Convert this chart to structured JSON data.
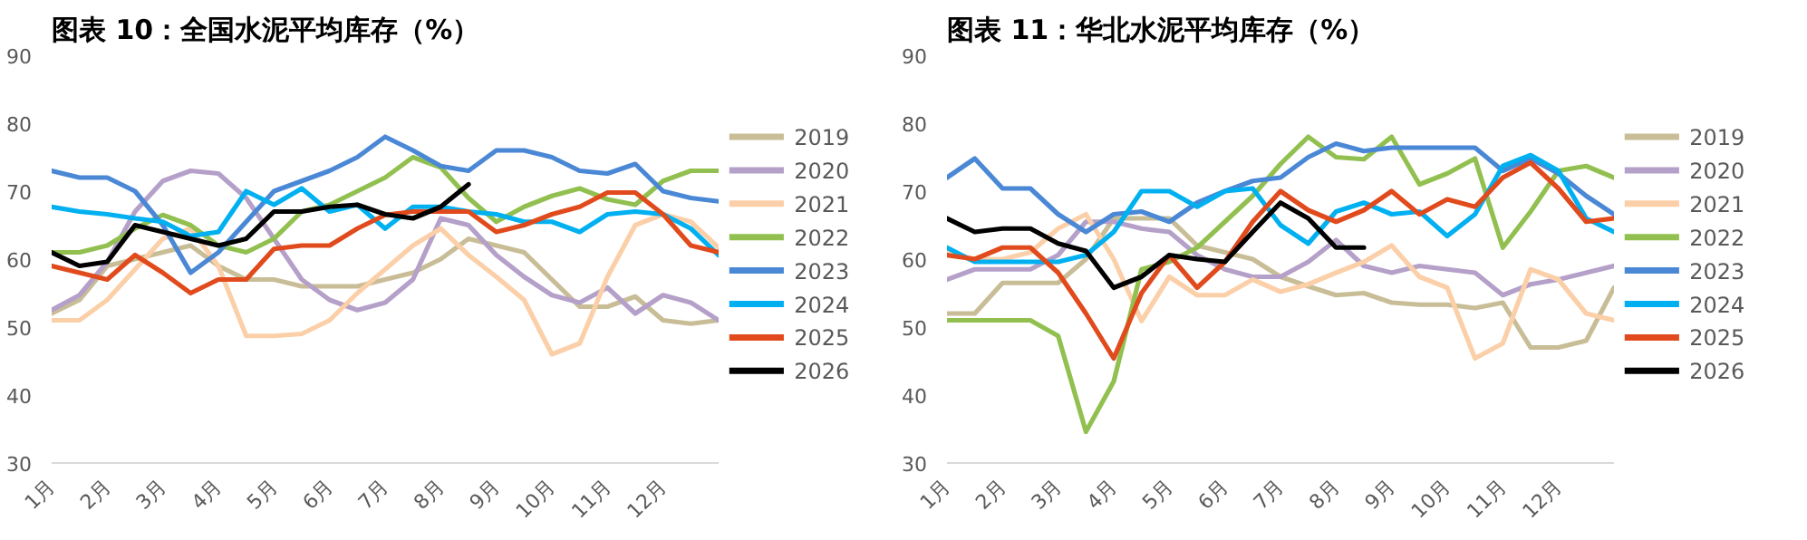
{
  "chart_data": [
    {
      "type": "line",
      "title": "图表 10：全国水泥平均库存（%）",
      "legend": "right",
      "ylim": [
        30,
        90
      ],
      "yticks": [
        30,
        40,
        50,
        60,
        70,
        80,
        90
      ],
      "categories": [
        "1月",
        null,
        "2月",
        null,
        "3月",
        null,
        "4月",
        null,
        "5月",
        null,
        "6月",
        null,
        "7月",
        null,
        "8月",
        null,
        "9月",
        null,
        "10月",
        null,
        "11月",
        null,
        "12月",
        null,
        null
      ],
      "series": [
        {
          "name": "2019",
          "color": "#c8bd96",
          "values": [
            52,
            54,
            59,
            60,
            61,
            62,
            59,
            57,
            57,
            56,
            56,
            56,
            57,
            58,
            60,
            63,
            62,
            61,
            57,
            53,
            53,
            54.5,
            51,
            50.5,
            51
          ]
        },
        {
          "name": "2020",
          "color": "#b4a0c8",
          "values": [
            52.5,
            54.7,
            59.6,
            67,
            71.5,
            73,
            72.6,
            69,
            63,
            57,
            54,
            52.5,
            53.6,
            57,
            66,
            65,
            60.6,
            57.4,
            54.7,
            53.6,
            55.8,
            52,
            54.7,
            53.6,
            51
          ]
        },
        {
          "name": "2021",
          "color": "#fbcfa8",
          "values": [
            51,
            51,
            54,
            58.5,
            63,
            64.5,
            59,
            48.7,
            48.7,
            49,
            51,
            55,
            58.5,
            62,
            64.5,
            60.6,
            57.4,
            54,
            46,
            47.6,
            57.4,
            65,
            66.6,
            65.5,
            61.7
          ]
        },
        {
          "name": "2022",
          "color": "#92c050",
          "values": [
            61,
            61,
            62,
            64.5,
            66.5,
            65,
            62,
            61,
            63,
            67,
            68,
            70,
            72,
            75,
            73.5,
            69,
            65.5,
            67.7,
            69.3,
            70.4,
            68.8,
            68,
            71.5,
            73,
            73
          ]
        },
        {
          "name": "2023",
          "color": "#4a88d6",
          "values": [
            73,
            72,
            72,
            70,
            65,
            58,
            61,
            65.5,
            70,
            71.5,
            73,
            75,
            78,
            76,
            73.7,
            73,
            76,
            76,
            75,
            73,
            72.6,
            74,
            70,
            69,
            68.5
          ]
        },
        {
          "name": "2024",
          "color": "#00b0f0",
          "values": [
            67.7,
            67,
            66.6,
            66,
            65.5,
            63.4,
            64,
            70,
            68,
            70.4,
            67,
            68,
            64.5,
            67.7,
            67.7,
            67,
            66.6,
            65.5,
            65.5,
            64,
            66.6,
            67,
            66.6,
            64.5,
            60.6
          ]
        },
        {
          "name": "2025",
          "color": "#e04a1c",
          "values": [
            59,
            58,
            57,
            60.6,
            58,
            55,
            57,
            57,
            61.5,
            62,
            62,
            64.5,
            66.5,
            67,
            67,
            67,
            64,
            65,
            66.6,
            67.7,
            69.8,
            69.8,
            66.6,
            62,
            61
          ]
        },
        {
          "name": "2026",
          "color": "#000000",
          "values": [
            61,
            59,
            59.6,
            65,
            64,
            63,
            62,
            63,
            67,
            67,
            67.7,
            68,
            66.6,
            66,
            67.7,
            71,
            null,
            null,
            null,
            null,
            null,
            null,
            null,
            null,
            null
          ]
        }
      ]
    },
    {
      "type": "line",
      "title": "图表 11：华北水泥平均库存（%）",
      "legend": "right",
      "ylim": [
        30,
        90
      ],
      "yticks": [
        30,
        40,
        50,
        60,
        70,
        80,
        90
      ],
      "categories": [
        "1月",
        null,
        "2月",
        null,
        "3月",
        null,
        "4月",
        null,
        "5月",
        null,
        "6月",
        null,
        "7月",
        null,
        "8月",
        null,
        "9月",
        null,
        "10月",
        null,
        "11月",
        null,
        "12月",
        null,
        null
      ],
      "series": [
        {
          "name": "2019",
          "color": "#c8bd96",
          "values": [
            52,
            52,
            56.5,
            56.5,
            56.5,
            60,
            66,
            66,
            66,
            62,
            61,
            60,
            57.4,
            56,
            54.7,
            55,
            53.6,
            53.3,
            53.3,
            52.8,
            53.6,
            47,
            47,
            48,
            55.8
          ]
        },
        {
          "name": "2020",
          "color": "#b4a0c8",
          "values": [
            57,
            58.5,
            58.5,
            58.5,
            60.6,
            65.5,
            65.5,
            64.5,
            64,
            60.6,
            58.5,
            57.4,
            57.4,
            59.6,
            62.8,
            59,
            58,
            59,
            58.5,
            58,
            54.7,
            56.3,
            57,
            58,
            59
          ]
        },
        {
          "name": "2021",
          "color": "#fbcfa8",
          "values": [
            61,
            60,
            60,
            61,
            64.5,
            66.6,
            60,
            50.9,
            57.4,
            54.7,
            54.7,
            57,
            55.2,
            56.3,
            58,
            59.6,
            62,
            57.4,
            55.8,
            45.4,
            47.6,
            58.5,
            57,
            52,
            51
          ]
        },
        {
          "name": "2022",
          "color": "#92c050",
          "values": [
            51,
            51,
            51,
            51,
            48.7,
            34.6,
            42,
            58.5,
            59.6,
            61.7,
            65.5,
            69.3,
            74,
            78,
            75,
            74.7,
            78,
            71,
            72.6,
            74.8,
            61.7,
            67,
            73,
            73.7,
            72
          ]
        },
        {
          "name": "2023",
          "color": "#4a88d6",
          "values": [
            72,
            74.8,
            70.4,
            70.4,
            66.6,
            64,
            66.6,
            67,
            65.5,
            68.3,
            70,
            71.5,
            72,
            75,
            77,
            75.9,
            76.4,
            76.4,
            76.4,
            76.4,
            73,
            74.8,
            72.6,
            69.3,
            66.6
          ]
        },
        {
          "name": "2024",
          "color": "#00b0f0",
          "values": [
            61.7,
            59.6,
            59.6,
            59.6,
            59.6,
            60.6,
            64,
            70,
            70,
            67.7,
            70,
            70.4,
            65,
            62.3,
            67,
            68.3,
            66.6,
            67,
            63.4,
            66.6,
            73.7,
            75.3,
            73,
            66,
            64
          ]
        },
        {
          "name": "2025",
          "color": "#e04a1c",
          "values": [
            60.6,
            60,
            61.7,
            61.7,
            58,
            52,
            45.4,
            55,
            60.6,
            55.8,
            59.6,
            65.5,
            70,
            67.2,
            65.5,
            67.2,
            70,
            66.6,
            68.8,
            67.7,
            72,
            74.2,
            70.4,
            65.5,
            66
          ]
        },
        {
          "name": "2026",
          "color": "#000000",
          "values": [
            66,
            64,
            64.5,
            64.5,
            62.3,
            61.2,
            55.8,
            57.4,
            60.6,
            60,
            59.6,
            64,
            68.3,
            66,
            61.7,
            61.7,
            null,
            null,
            null,
            null,
            null,
            null,
            null,
            null,
            null
          ]
        }
      ]
    }
  ]
}
